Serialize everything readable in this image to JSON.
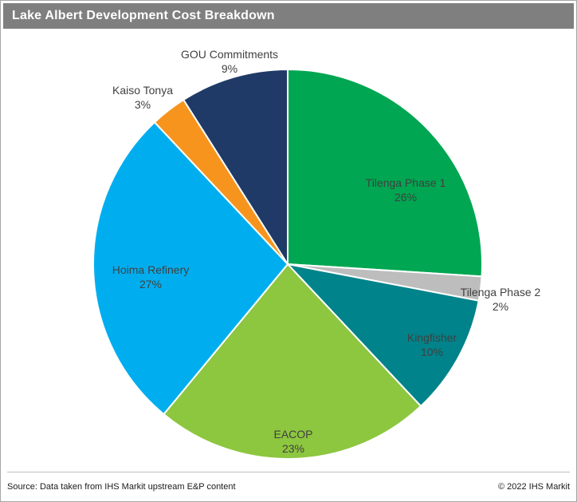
{
  "header": {
    "title": "Lake Albert Development Cost Breakdown",
    "bar_color": "#7f7f7f"
  },
  "footer": {
    "source": "Source: Data taken from IHS Markit upstream E&P content",
    "copyright": "© 2022 IHS Markit"
  },
  "chart_data": {
    "type": "pie",
    "title": "Lake Albert Development Cost Breakdown",
    "units": "%",
    "total": 100,
    "start_angle_deg": 0,
    "direction": "clockwise",
    "legend": "none (labels on/near slices)",
    "label_text_color": "#404040",
    "slices": [
      {
        "label": "Tilenga Phase 1",
        "value": 26,
        "display": "26%",
        "color": "#00a651",
        "label_placement": "inside"
      },
      {
        "label": "Tilenga Phase 2",
        "value": 2,
        "display": "2%",
        "color": "#bdbdbd",
        "label_placement": "outside"
      },
      {
        "label": "Kingfisher",
        "value": 10,
        "display": "10%",
        "color": "#00838a",
        "label_placement": "inside"
      },
      {
        "label": "EACOP",
        "value": 23,
        "display": "23%",
        "color": "#8dc63f",
        "label_placement": "inside"
      },
      {
        "label": "Hoima Refinery",
        "value": 27,
        "display": "27%",
        "color": "#00aeef",
        "label_placement": "inside"
      },
      {
        "label": "Kaiso Tonya",
        "value": 3,
        "display": "3%",
        "color": "#f7941d",
        "label_placement": "outside"
      },
      {
        "label": "GOU Commitments",
        "value": 9,
        "display": "9%",
        "color": "#1f3a66",
        "label_placement": "outside"
      }
    ]
  }
}
